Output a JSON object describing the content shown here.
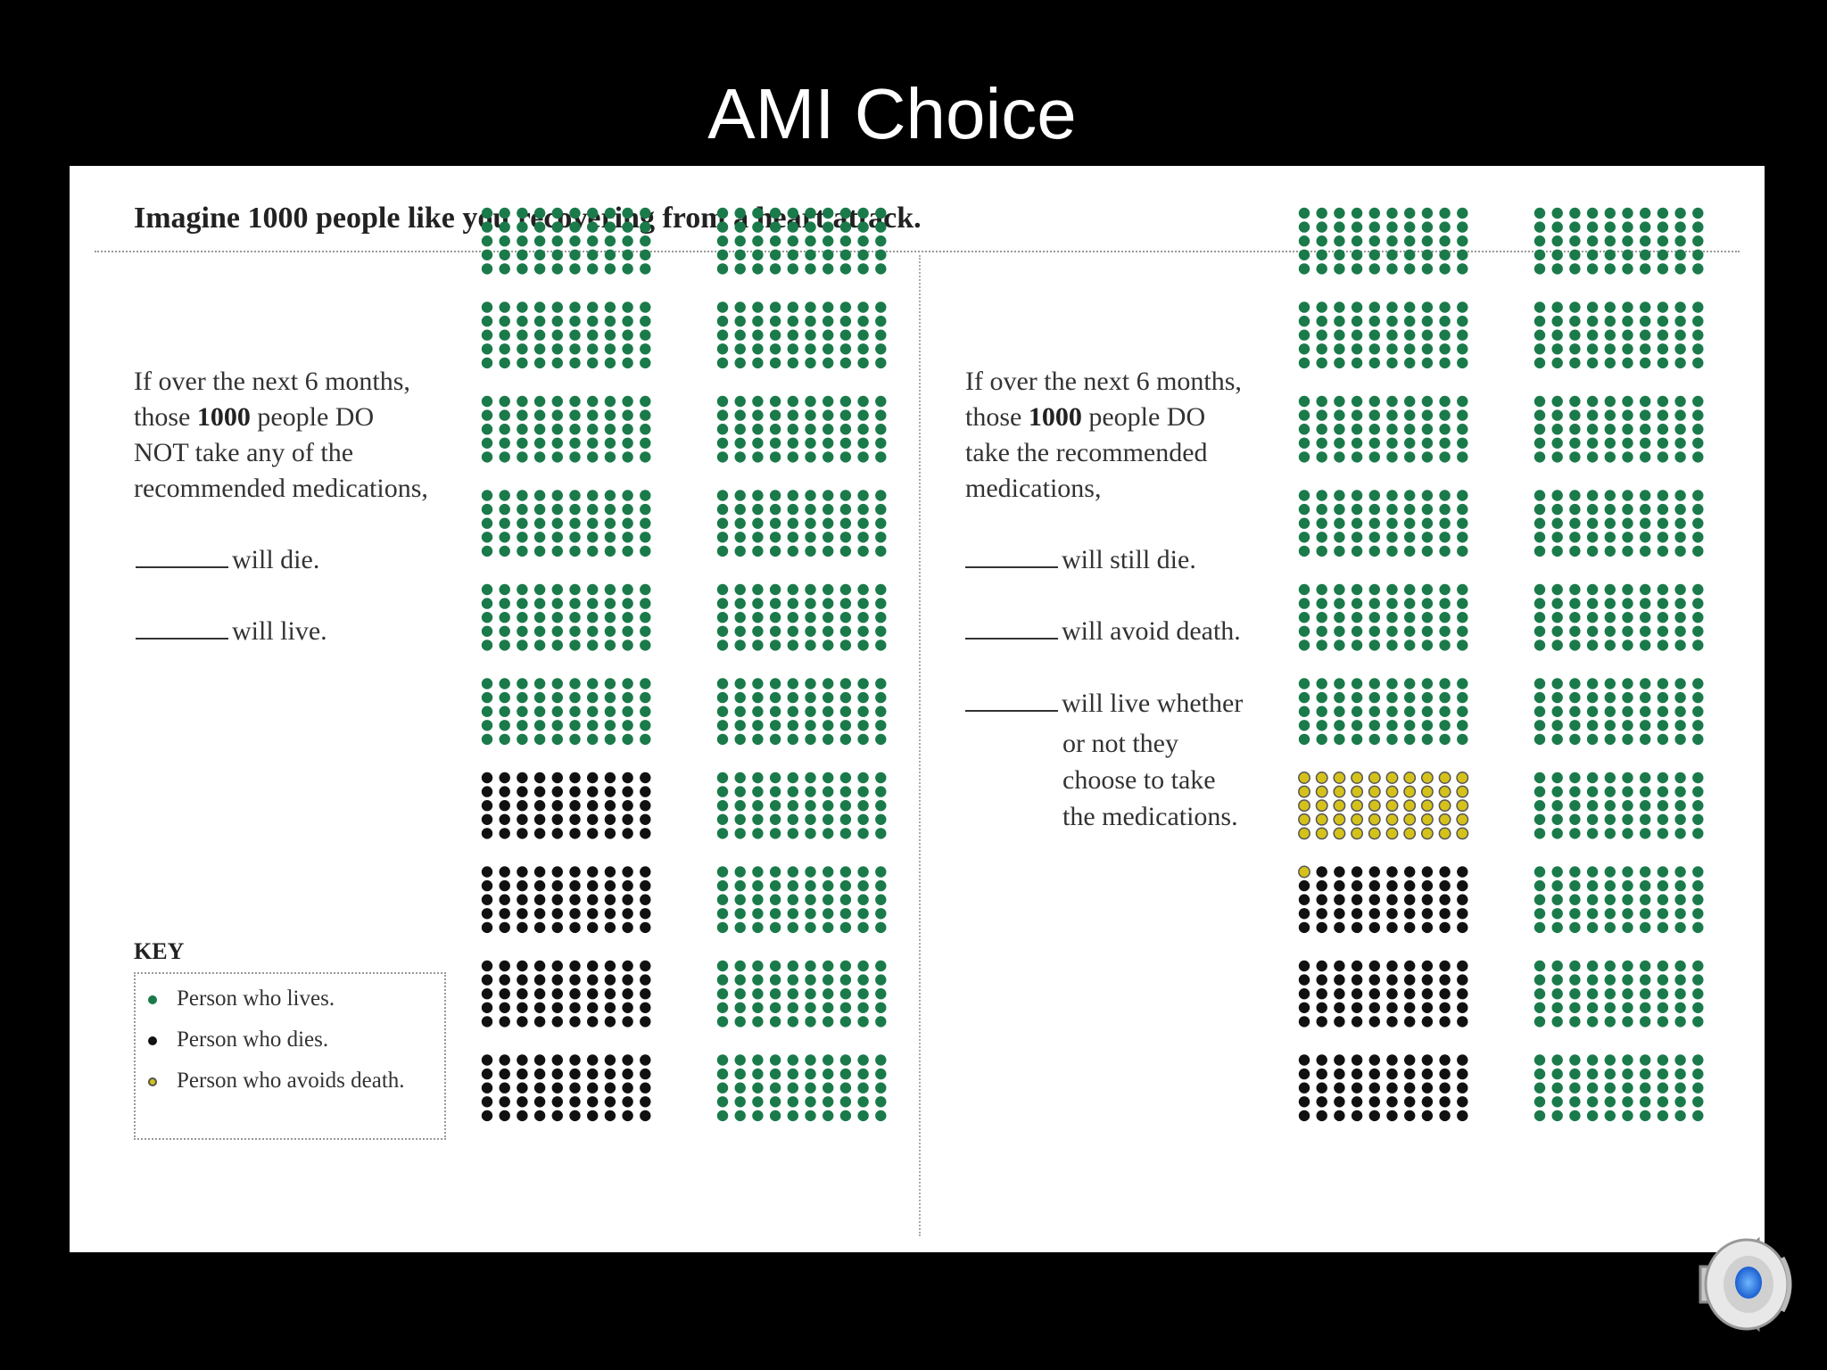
{
  "slide": {
    "title": "AMI Choice"
  },
  "panel": {
    "heading": "Imagine 1000 people like you recovering from a heart attack."
  },
  "left_scenario": {
    "line1": "If over the next 6 months,",
    "line2_pre": "those ",
    "line2_bold": "1000",
    "line2_post": " people DO",
    "line3": "NOT take any of the",
    "line4": "recommended medications,",
    "blank1": "will die.",
    "blank2": "will live."
  },
  "right_scenario": {
    "line1": "If over the next 6 months,",
    "line2_pre": "those ",
    "line2_bold": "1000",
    "line2_post": " people DO",
    "line3": "take the recommended",
    "line4": "medications,",
    "blank1": "will still die.",
    "blank2": "will avoid death.",
    "blank3": "will live whether",
    "blank3_line2": "or not they",
    "blank3_line3": "choose to take",
    "blank3_line4": "the medications."
  },
  "key": {
    "title": "KEY",
    "lives": "Person who lives.",
    "dies": "Person who dies.",
    "avoids": "Person who avoids death."
  },
  "colors": {
    "lives": "#1a7a4a",
    "dies": "#111111",
    "avoids": "#d4c21a"
  },
  "icons": {
    "speaker": "speaker-icon"
  },
  "grids": {
    "left": {
      "total": 1000,
      "columns": 2,
      "blocks_per_column": 10,
      "dots_per_block": 50,
      "die": 200,
      "avoid": 0
    },
    "right": {
      "total": 1000,
      "columns": 2,
      "blocks_per_column": 10,
      "dots_per_block": 50,
      "die": 149,
      "avoid": 51
    }
  }
}
